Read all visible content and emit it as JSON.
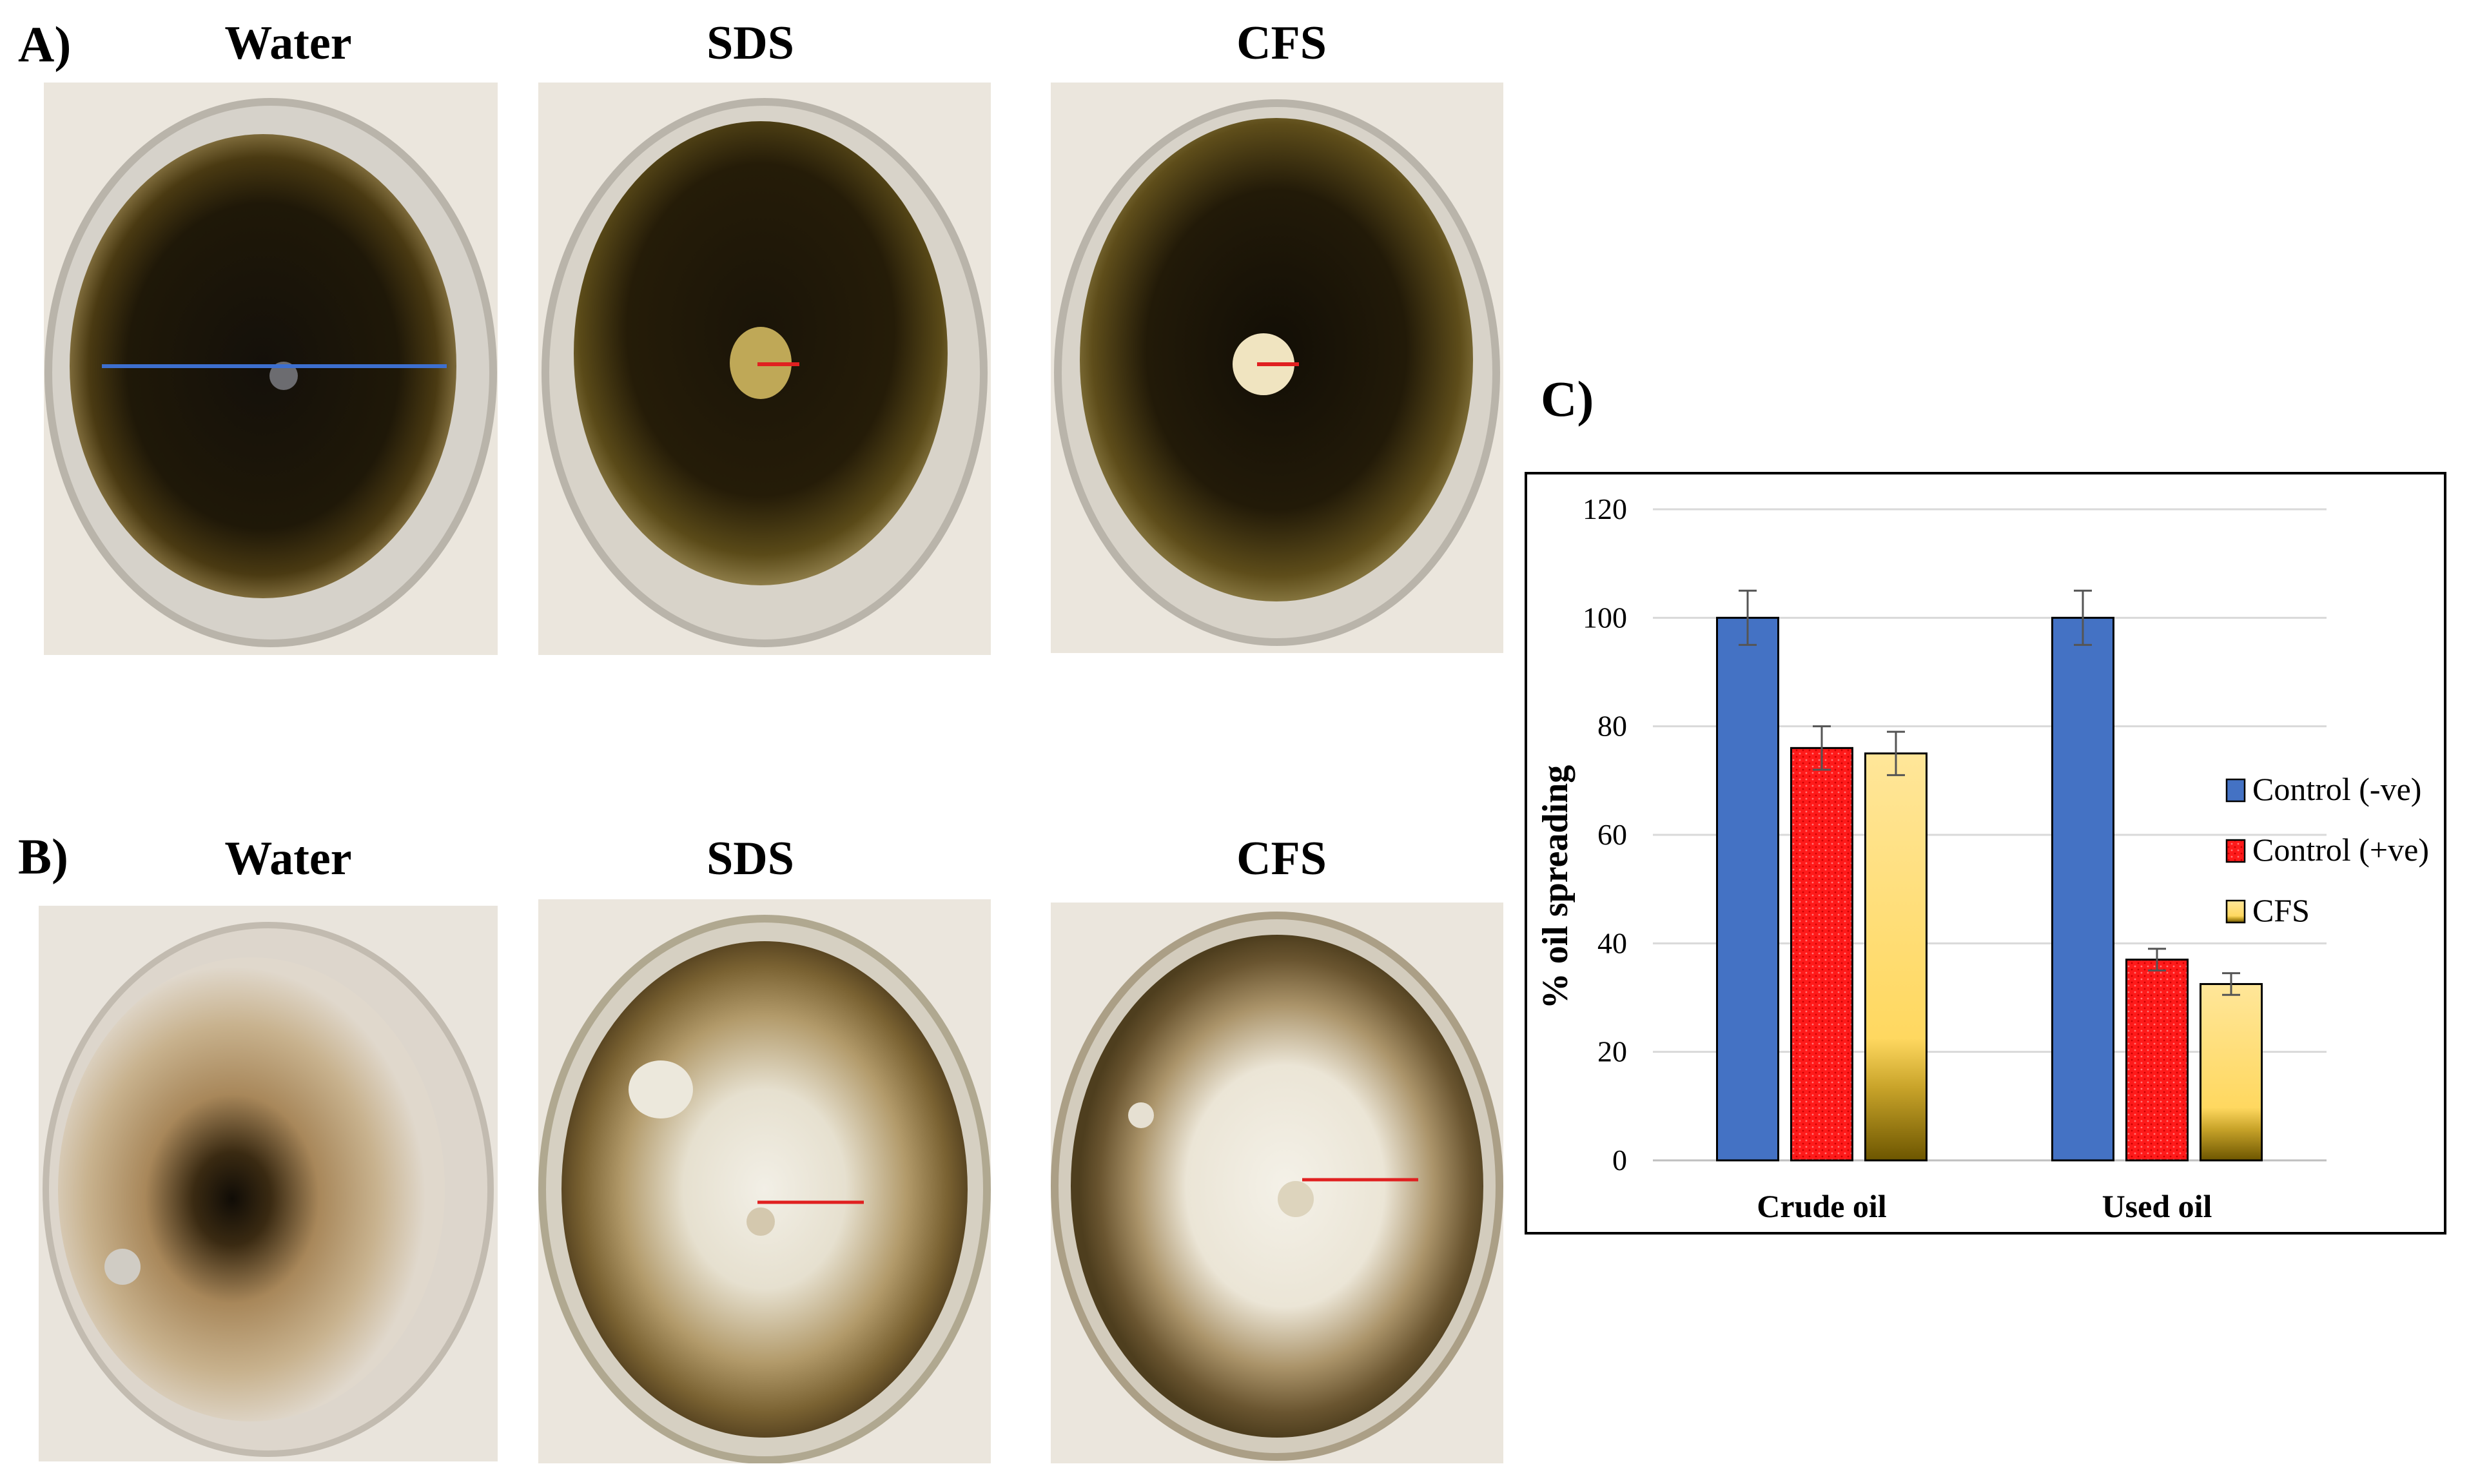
{
  "panels": {
    "a": {
      "letter": "A)",
      "titles": [
        "Water",
        "SDS",
        "CFS"
      ]
    },
    "b": {
      "letter": "B)",
      "titles": [
        "Water",
        "SDS",
        "CFS"
      ]
    },
    "c": {
      "letter": "C)"
    }
  },
  "colors": {
    "control_neg": "#4472c4",
    "control_pos": "#ff1a1a",
    "cfs_top": "#ffe699",
    "cfs_bottom": "#8a6d00",
    "crude_oil_dark": "#1c1606",
    "used_oil": "#a8875a",
    "measure_blue": "#3d6fcf",
    "measure_red": "#e02020"
  },
  "chart_data": {
    "type": "bar",
    "categories": [
      "Crude oil",
      "Used oil"
    ],
    "series": [
      {
        "name": "Control (-ve)",
        "values": [
          100,
          100
        ],
        "errors": [
          5,
          5
        ]
      },
      {
        "name": "Control (+ve)",
        "values": [
          76,
          37
        ],
        "errors": [
          4,
          2
        ]
      },
      {
        "name": "CFS",
        "values": [
          75,
          32.5
        ],
        "errors": [
          4,
          2
        ]
      }
    ],
    "ylabel": "% oil spreading",
    "xlabel": "",
    "ylim": [
      0,
      120
    ],
    "yticks": [
      0,
      20,
      40,
      60,
      80,
      100,
      120
    ],
    "grid": true,
    "legend": "right"
  }
}
